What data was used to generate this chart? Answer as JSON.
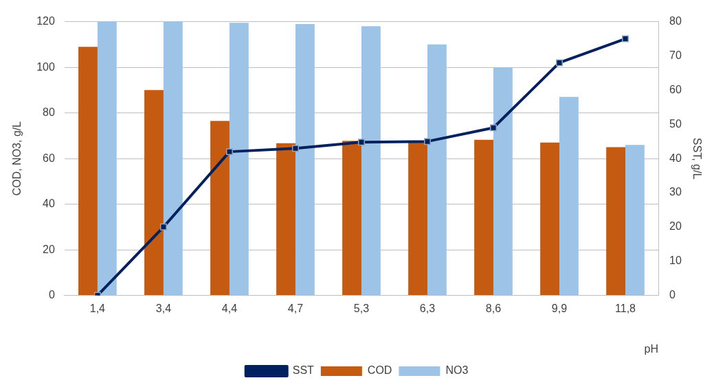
{
  "chart_data": {
    "type": "bar",
    "xlabel": "pH",
    "ylabel": "COD, NO3, g/L",
    "y2label": "SST, g/L",
    "categories": [
      "1,4",
      "3,4",
      "4,4",
      "4,7",
      "5,3",
      "6,3",
      "8,6",
      "9,9",
      "11,8"
    ],
    "series": [
      {
        "name": "COD",
        "color": "#c55a11",
        "values": [
          109,
          90,
          76.5,
          66.7,
          67.8,
          67.5,
          68.2,
          67,
          65
        ]
      },
      {
        "name": "NO3",
        "color": "#9dc3e6",
        "values": [
          120,
          120,
          119.5,
          119,
          118,
          110,
          100,
          87,
          66
        ]
      },
      {
        "name": "SST",
        "type": "line",
        "axis": "y2",
        "color": "#002060",
        "marker": "square",
        "values": [
          0,
          20,
          42,
          43,
          44.8,
          45,
          49,
          68,
          75
        ]
      }
    ],
    "ylim": [
      0,
      120
    ],
    "yticks": [
      0,
      20,
      40,
      60,
      80,
      100,
      120
    ],
    "y2lim": [
      0,
      80
    ],
    "y2ticks": [
      0,
      10,
      20,
      30,
      40,
      50,
      60,
      70,
      80
    ],
    "grid": "y",
    "legend": "bottom"
  }
}
